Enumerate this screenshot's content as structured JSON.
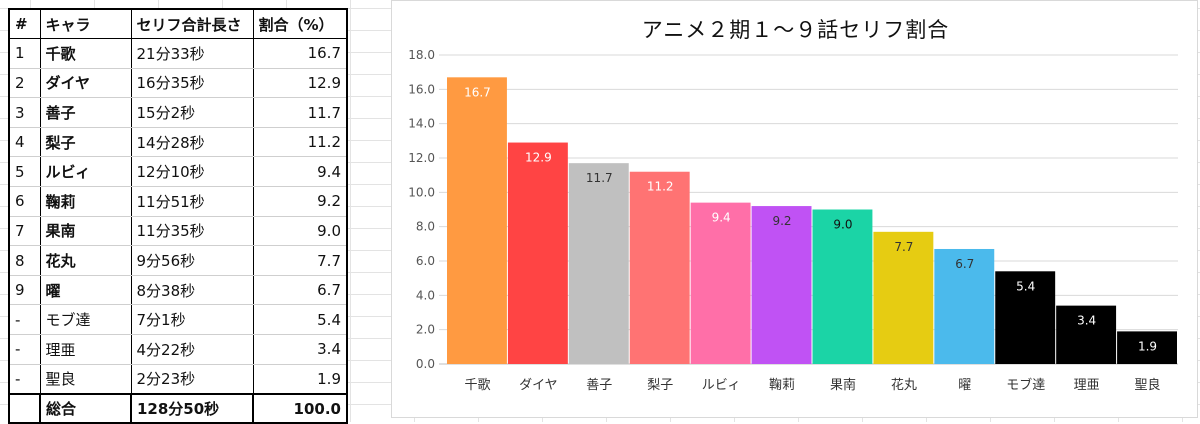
{
  "table": {
    "headers": [
      "#",
      "キャラ",
      "セリフ合計長さ",
      "割合（%）"
    ],
    "rows": [
      {
        "no": "1",
        "name": "千歌",
        "length": "21分33秒",
        "pct": "16.7"
      },
      {
        "no": "2",
        "name": "ダイヤ",
        "length": "16分35秒",
        "pct": "12.9"
      },
      {
        "no": "3",
        "name": "善子",
        "length": "15分2秒",
        "pct": "11.7"
      },
      {
        "no": "4",
        "name": "梨子",
        "length": "14分28秒",
        "pct": "11.2"
      },
      {
        "no": "5",
        "name": "ルビィ",
        "length": "12分10秒",
        "pct": "9.4"
      },
      {
        "no": "6",
        "name": "鞠莉",
        "length": "11分51秒",
        "pct": "9.2"
      },
      {
        "no": "7",
        "name": "果南",
        "length": "11分35秒",
        "pct": "9.0"
      },
      {
        "no": "8",
        "name": "花丸",
        "length": "9分56秒",
        "pct": "7.7"
      },
      {
        "no": "9",
        "name": "曜",
        "length": "8分38秒",
        "pct": "6.7"
      },
      {
        "no": "-",
        "name": "モブ達",
        "length": "7分1秒",
        "pct": "5.4"
      },
      {
        "no": "-",
        "name": "理亜",
        "length": "4分22秒",
        "pct": "3.4"
      },
      {
        "no": "-",
        "name": "聖良",
        "length": "2分23秒",
        "pct": "1.9"
      }
    ],
    "total": {
      "no": "",
      "name": "総合",
      "length": "128分50秒",
      "pct": "100.0"
    }
  },
  "chart_data": {
    "type": "bar",
    "title": "アニメ２期１～９話セリフ割合",
    "categories": [
      "千歌",
      "ダイヤ",
      "善子",
      "梨子",
      "ルビィ",
      "鞠莉",
      "果南",
      "花丸",
      "曜",
      "モブ達",
      "理亜",
      "聖良"
    ],
    "values": [
      16.7,
      12.9,
      11.7,
      11.2,
      9.4,
      9.2,
      9.0,
      7.7,
      6.7,
      5.4,
      3.4,
      1.9
    ],
    "value_labels": [
      "16.7",
      "12.9",
      "11.7",
      "11.2",
      "9.4",
      "9.2",
      "9.0",
      "7.7",
      "6.7",
      "5.4",
      "3.4",
      "1.9"
    ],
    "colors": [
      "#FF9A41",
      "#FF4444",
      "#C0C0C0",
      "#FF7373",
      "#FF6FA8",
      "#C052F4",
      "#1BD4A6",
      "#E6CC12",
      "#4BBAEC",
      "#000000",
      "#000000",
      "#000000"
    ],
    "label_colors": [
      "#ffffff",
      "#ffffff",
      "#333333",
      "#ffffff",
      "#ffffff",
      "#333333",
      "#111111",
      "#333333",
      "#333333",
      "#ffffff",
      "#ffffff",
      "#ffffff"
    ],
    "yticks": [
      "0.0",
      "2.0",
      "4.0",
      "6.0",
      "8.0",
      "10.0",
      "12.0",
      "14.0",
      "16.0",
      "18.0"
    ],
    "ylim": [
      0,
      18
    ],
    "xlabel": "",
    "ylabel": "",
    "grid": true,
    "legend": false
  }
}
